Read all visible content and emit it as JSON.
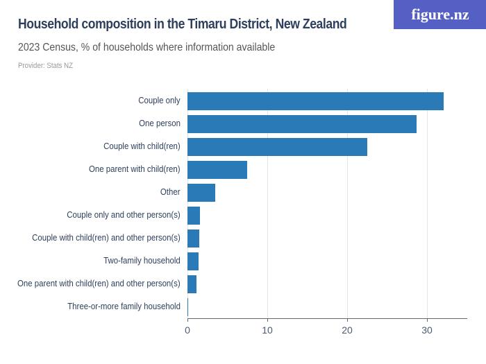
{
  "header": {
    "title": "Household composition in the Timaru District, New Zealand",
    "subtitle": "2023 Census, % of households where information available",
    "provider": "Provider: Stats NZ",
    "logo": "figure.nz"
  },
  "colors": {
    "bar": "#2a7ab8",
    "logo_bg": "#5460c4",
    "title": "#2d3f5c"
  },
  "chart_data": {
    "type": "bar",
    "orientation": "horizontal",
    "title": "Household composition in the Timaru District, New Zealand",
    "subtitle": "2023 Census, % of households where information available",
    "xlabel": "",
    "ylabel": "",
    "categories": [
      "Couple only",
      "One person",
      "Couple with child(ren)",
      "One parent with child(ren)",
      "Other",
      "Couple only and other person(s)",
      "Couple with child(ren) and other person(s)",
      "Two-family household",
      "One parent with child(ren) and other person(s)",
      "Three-or-more family household"
    ],
    "values": [
      32.1,
      28.7,
      22.5,
      7.5,
      3.5,
      1.6,
      1.5,
      1.4,
      1.1,
      0.1
    ],
    "xlim": [
      0,
      35
    ],
    "xticks": [
      "0",
      "10",
      "20",
      "30"
    ],
    "grid": true,
    "legend": null
  }
}
